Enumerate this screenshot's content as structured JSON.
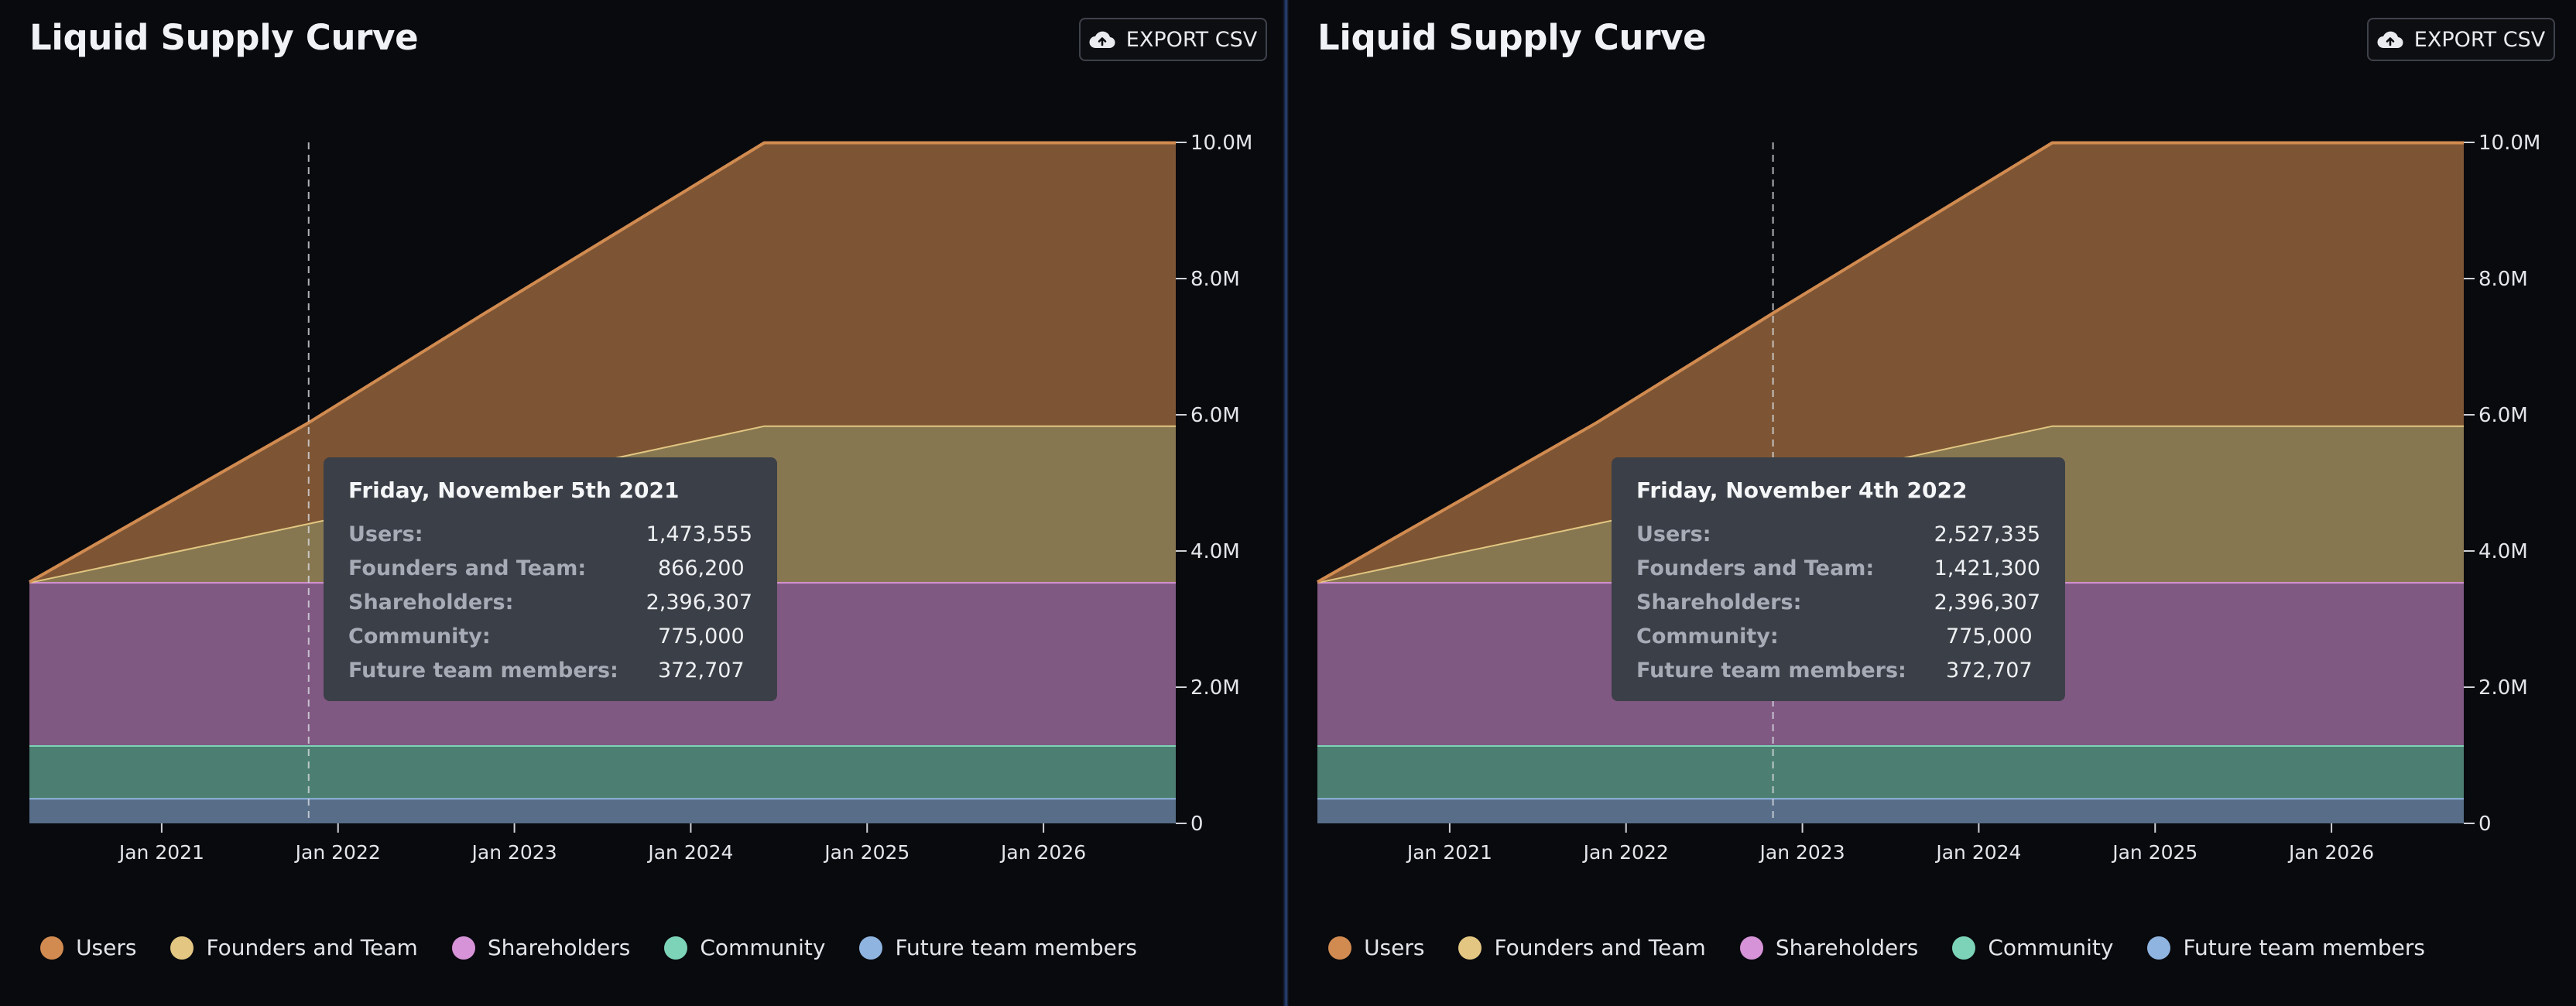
{
  "panels": [
    {
      "title": "Liquid Supply Curve",
      "export_label": "EXPORT CSV",
      "tooltip": {
        "date": "Friday, November 5th 2021",
        "rows": [
          {
            "label": "Users:",
            "value": "1,473,555"
          },
          {
            "label": "Founders and Team:",
            "value": "866,200"
          },
          {
            "label": "Shareholders:",
            "value": "2,396,307"
          },
          {
            "label": "Community:",
            "value": "775,000"
          },
          {
            "label": "Future team members:",
            "value": "372,707"
          }
        ]
      }
    },
    {
      "title": "Liquid Supply Curve",
      "export_label": "EXPORT CSV",
      "tooltip": {
        "date": "Friday, November 4th 2022",
        "rows": [
          {
            "label": "Users:",
            "value": "2,527,335"
          },
          {
            "label": "Founders and Team:",
            "value": "1,421,300"
          },
          {
            "label": "Shareholders:",
            "value": "2,396,307"
          },
          {
            "label": "Community:",
            "value": "775,000"
          },
          {
            "label": "Future team members:",
            "value": "372,707"
          }
        ]
      }
    }
  ],
  "chart_data": [
    {
      "type": "area",
      "stacked": true,
      "title": "Liquid Supply Curve",
      "x_range": [
        "2020-04",
        "2026-10"
      ],
      "ylim": [
        0,
        10000000
      ],
      "y_ticks": [
        "0",
        "2.0M",
        "4.0M",
        "6.0M",
        "8.0M",
        "10.0M"
      ],
      "y_tick_values": [
        0,
        2000000,
        4000000,
        6000000,
        8000000,
        10000000
      ],
      "x_ticks": [
        "Jan 2021",
        "Jan 2022",
        "Jan 2023",
        "Jan 2024",
        "Jan 2025",
        "Jan 2026"
      ],
      "x_tick_dates": [
        "2021-01",
        "2022-01",
        "2023-01",
        "2024-01",
        "2025-01",
        "2026-01"
      ],
      "hover_date": "2021-11",
      "x": [
        "2020-04",
        "2021-11",
        "2022-11",
        "2024-06",
        "2026-10"
      ],
      "series": [
        {
          "name": "Future team members",
          "color": "#8fb4e0",
          "values": [
            372707,
            372707,
            372707,
            372707,
            372707
          ]
        },
        {
          "name": "Community",
          "color": "#7dd3b8",
          "values": [
            775000,
            775000,
            775000,
            775000,
            775000
          ]
        },
        {
          "name": "Shareholders",
          "color": "#d693d8",
          "values": [
            2396307,
            2396307,
            2396307,
            2396307,
            2396307
          ]
        },
        {
          "name": "Founders and Team",
          "color": "#e2c681",
          "values": [
            0,
            866200,
            1421300,
            2300000,
            2300000
          ]
        },
        {
          "name": "Users",
          "color": "#d18b50",
          "values": [
            0,
            1473555,
            2527335,
            4150000,
            4150000
          ]
        }
      ],
      "legend_position": "bottom",
      "grid": false
    },
    {
      "type": "area",
      "stacked": true,
      "title": "Liquid Supply Curve",
      "x_range": [
        "2020-04",
        "2026-10"
      ],
      "ylim": [
        0,
        10000000
      ],
      "y_ticks": [
        "0",
        "2.0M",
        "4.0M",
        "6.0M",
        "8.0M",
        "10.0M"
      ],
      "y_tick_values": [
        0,
        2000000,
        4000000,
        6000000,
        8000000,
        10000000
      ],
      "x_ticks": [
        "Jan 2021",
        "Jan 2022",
        "Jan 2023",
        "Jan 2024",
        "Jan 2025",
        "Jan 2026"
      ],
      "x_tick_dates": [
        "2021-01",
        "2022-01",
        "2023-01",
        "2024-01",
        "2025-01",
        "2026-01"
      ],
      "hover_date": "2022-11",
      "x": [
        "2020-04",
        "2021-11",
        "2022-11",
        "2024-06",
        "2026-10"
      ],
      "series": [
        {
          "name": "Future team members",
          "color": "#8fb4e0",
          "values": [
            372707,
            372707,
            372707,
            372707,
            372707
          ]
        },
        {
          "name": "Community",
          "color": "#7dd3b8",
          "values": [
            775000,
            775000,
            775000,
            775000,
            775000
          ]
        },
        {
          "name": "Shareholders",
          "color": "#d693d8",
          "values": [
            2396307,
            2396307,
            2396307,
            2396307,
            2396307
          ]
        },
        {
          "name": "Founders and Team",
          "color": "#e2c681",
          "values": [
            0,
            866200,
            1421300,
            2300000,
            2300000
          ]
        },
        {
          "name": "Users",
          "color": "#d18b50",
          "values": [
            0,
            1473555,
            2527335,
            4150000,
            4150000
          ]
        }
      ],
      "legend_position": "bottom",
      "grid": false
    }
  ],
  "legend": [
    {
      "label": "Users",
      "color": "#d18b50"
    },
    {
      "label": "Founders and Team",
      "color": "#e2c681"
    },
    {
      "label": "Shareholders",
      "color": "#d693d8"
    },
    {
      "label": "Community",
      "color": "#7dd3b8"
    },
    {
      "label": "Future team members",
      "color": "#8fb4e0"
    }
  ],
  "icons": {
    "export": "cloud-upload-icon",
    "legend_marker": "circle"
  }
}
